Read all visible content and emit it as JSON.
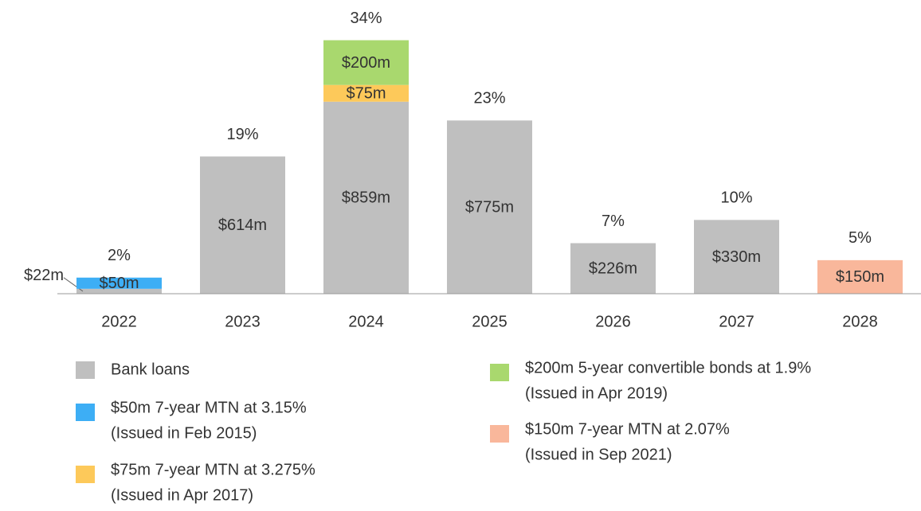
{
  "chart_data": {
    "type": "stacked_bar",
    "categories": [
      "2022",
      "2023",
      "2024",
      "2025",
      "2026",
      "2027",
      "2028"
    ],
    "ylim": [
      0,
      1200
    ],
    "series": [
      {
        "name": "Bank loans",
        "color": "#bfbfbf",
        "values": [
          22,
          614,
          859,
          775,
          226,
          330,
          null
        ],
        "value_labels": [
          "$22m",
          "$614m",
          "$859m",
          "$775m",
          "$226m",
          "$330m",
          null
        ]
      },
      {
        "name": "$50m 7-year MTN at 3.15%",
        "issued": "(Issued in Feb 2015)",
        "color": "#3daef5",
        "values": [
          50,
          null,
          null,
          null,
          null,
          null,
          null
        ],
        "value_labels": [
          "$50m",
          null,
          null,
          null,
          null,
          null,
          null
        ]
      },
      {
        "name": "$75m 7-year MTN at 3.275%",
        "issued": "(Issued in Apr 2017)",
        "color": "#fdc95a",
        "values": [
          null,
          null,
          75,
          null,
          null,
          null,
          null
        ],
        "value_labels": [
          null,
          null,
          "$75m",
          null,
          null,
          null,
          null
        ]
      },
      {
        "name": "$200m 5-year convertible bonds at 1.9%",
        "issued": "(Issued in Apr 2019)",
        "color": "#a9d86e",
        "values": [
          null,
          null,
          200,
          null,
          null,
          null,
          null
        ],
        "value_labels": [
          null,
          null,
          "$200m",
          null,
          null,
          null,
          null
        ]
      },
      {
        "name": "$150m 7-year MTN at 2.07%",
        "issued": "(Issued in Sep 2021)",
        "color": "#f9b79b",
        "values": [
          null,
          null,
          null,
          null,
          null,
          null,
          150
        ],
        "value_labels": [
          null,
          null,
          null,
          null,
          null,
          null,
          "$150m"
        ]
      }
    ],
    "shares": {
      "values": [
        2,
        19,
        34,
        23,
        7,
        10,
        5
      ],
      "value_labels": [
        "2%",
        "19%",
        "34%",
        "23%",
        "7%",
        "10%",
        "5%"
      ]
    }
  }
}
